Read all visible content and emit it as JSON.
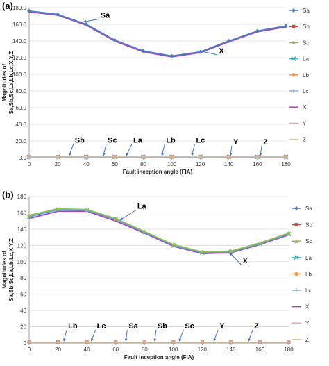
{
  "chart_data": [
    {
      "panel_label": "(a)",
      "type": "line",
      "xlabel": "Fault inception angle (FIA)",
      "ylabel": "Magnitudes of Sa,Sb,Sc,La,Lb,Lc,X,Y,Z",
      "xlim": [
        0,
        180
      ],
      "ylim": [
        0,
        180
      ],
      "xticks": [
        "0",
        "20",
        "40",
        "60",
        "80",
        "100",
        "120",
        "140",
        "160",
        "180"
      ],
      "yticks": [
        "0.0",
        "20.0",
        "40.0",
        "60.0",
        "80.0",
        "100.0",
        "120.0",
        "140.0",
        "160.0",
        "180.0"
      ],
      "grid": "horizontal",
      "legend": "right",
      "x": [
        0,
        20,
        40,
        60,
        80,
        100,
        120,
        140,
        160,
        180
      ],
      "series": [
        {
          "name": "Sa",
          "marker": "diamond",
          "color": "#4a7ebb",
          "values": [
            176,
            172,
            160,
            141,
            128,
            122,
            127,
            140,
            152,
            158
          ]
        },
        {
          "name": "Sb",
          "marker": "square",
          "color": "#be4b48",
          "values": [
            1,
            1,
            1,
            1,
            1,
            1,
            1,
            1,
            1,
            1
          ]
        },
        {
          "name": "Sc",
          "marker": "triangle",
          "color": "#98b954",
          "values": [
            1,
            1,
            1,
            1,
            1,
            1,
            1,
            1,
            1,
            1
          ]
        },
        {
          "name": "La",
          "marker": "x",
          "color": "#46aac5",
          "values": [
            1,
            1,
            1,
            1,
            1,
            1,
            1,
            1,
            1,
            1
          ]
        },
        {
          "name": "Lb",
          "marker": "circle",
          "color": "#f79646",
          "values": [
            1,
            1,
            1,
            1,
            1,
            1,
            1,
            1,
            1,
            1
          ]
        },
        {
          "name": "Lc",
          "marker": "plus",
          "color": "#8eb4e3",
          "values": [
            1,
            1,
            1,
            1,
            1,
            1,
            1,
            1,
            1,
            1
          ]
        },
        {
          "name": "X",
          "marker": "none",
          "color": "#b03cc8",
          "values": [
            175,
            171,
            159,
            140,
            127,
            121,
            126,
            139,
            151,
            157
          ]
        },
        {
          "name": "Y",
          "marker": "none",
          "color": "#f0a0c8",
          "values": [
            1,
            1,
            1,
            1,
            1,
            1,
            1,
            1,
            1,
            1
          ]
        },
        {
          "name": "Z",
          "marker": "none",
          "color": "#d8c89a",
          "values": [
            1,
            1,
            1,
            1,
            1,
            1,
            1,
            1,
            1,
            1
          ]
        }
      ],
      "annotations": [
        {
          "text": "Sa",
          "x": 50,
          "y": 168,
          "to_x": 38,
          "to_y": 163
        },
        {
          "text": "X",
          "x": 133,
          "y": 125,
          "to_x": 120,
          "to_y": 128
        },
        {
          "text": "Sb",
          "x": 32,
          "y": 18,
          "to_x": 28,
          "to_y": 2
        },
        {
          "text": "Sc",
          "x": 55,
          "y": 18,
          "to_x": 52,
          "to_y": 2
        },
        {
          "text": "La",
          "x": 73,
          "y": 18,
          "to_x": 68,
          "to_y": 2
        },
        {
          "text": "Lb",
          "x": 96,
          "y": 18,
          "to_x": 93,
          "to_y": 2
        },
        {
          "text": "Lc",
          "x": 117,
          "y": 18,
          "to_x": 114,
          "to_y": 2
        },
        {
          "text": "Y",
          "x": 143,
          "y": 16,
          "to_x": 141,
          "to_y": 2
        },
        {
          "text": "Z",
          "x": 164,
          "y": 16,
          "to_x": 162,
          "to_y": 2
        }
      ]
    },
    {
      "panel_label": "(b)",
      "type": "line",
      "xlabel": "Fault inception angle (FIA)",
      "ylabel": "Magnitudes of Sa,Sb,Sc,La,Lb,Lc,X,Y,Z",
      "xlim": [
        0,
        180
      ],
      "ylim": [
        0,
        180
      ],
      "xticks": [
        "0",
        "20",
        "40",
        "60",
        "80",
        "100",
        "120",
        "140",
        "160",
        "180"
      ],
      "yticks": [
        "0",
        "20",
        "40",
        "60",
        "80",
        "100",
        "120",
        "140",
        "160",
        "180"
      ],
      "grid": "horizontal",
      "legend": "right",
      "x": [
        0,
        20,
        40,
        60,
        80,
        100,
        120,
        140,
        160,
        180
      ],
      "series": [
        {
          "name": "Sa",
          "marker": "diamond",
          "color": "#4a7ebb",
          "values": [
            1,
            1,
            1,
            1,
            1,
            1,
            1,
            1,
            1,
            1
          ]
        },
        {
          "name": "Sb",
          "marker": "square",
          "color": "#be4b48",
          "values": [
            1,
            1,
            1,
            1,
            1,
            1,
            1,
            1,
            1,
            1
          ]
        },
        {
          "name": "Sc",
          "marker": "triangle",
          "color": "#98b954",
          "values": [
            157,
            165,
            164,
            153,
            137,
            121,
            112,
            113,
            123,
            135
          ]
        },
        {
          "name": "La",
          "marker": "x",
          "color": "#46aac5",
          "values": [
            155,
            164,
            163,
            152,
            136,
            120,
            111,
            112,
            122,
            134
          ]
        },
        {
          "name": "Lb",
          "marker": "circle",
          "color": "#f79646",
          "values": [
            1,
            1,
            1,
            1,
            1,
            1,
            1,
            1,
            1,
            1
          ]
        },
        {
          "name": "Lc",
          "marker": "plus",
          "color": "#8eb4e3",
          "values": [
            1,
            1,
            1,
            1,
            1,
            1,
            1,
            1,
            1,
            1
          ]
        },
        {
          "name": "X",
          "marker": "none",
          "color": "#b03cc8",
          "values": [
            153,
            162,
            162,
            150,
            135,
            119,
            110,
            111,
            121,
            133
          ]
        },
        {
          "name": "Y",
          "marker": "none",
          "color": "#f0a0c8",
          "values": [
            1,
            1,
            1,
            1,
            1,
            1,
            1,
            1,
            1,
            1
          ]
        },
        {
          "name": "Z",
          "marker": "none",
          "color": "#d8c89a",
          "values": [
            1,
            1,
            1,
            1,
            1,
            1,
            1,
            1,
            1,
            1
          ]
        }
      ],
      "annotations": [
        {
          "text": "La",
          "x": 75,
          "y": 165,
          "to_x": 63,
          "to_y": 151
        },
        {
          "text": "X",
          "x": 148,
          "y": 98,
          "to_x": 139,
          "to_y": 111
        },
        {
          "text": "Lb",
          "x": 27,
          "y": 18,
          "to_x": 24,
          "to_y": 2
        },
        {
          "text": "Lc",
          "x": 47,
          "y": 18,
          "to_x": 43,
          "to_y": 2
        },
        {
          "text": "Sa",
          "x": 69,
          "y": 18,
          "to_x": 67,
          "to_y": 2
        },
        {
          "text": "Sb",
          "x": 89,
          "y": 18,
          "to_x": 87,
          "to_y": 2
        },
        {
          "text": "Sc",
          "x": 108,
          "y": 18,
          "to_x": 104,
          "to_y": 2
        },
        {
          "text": "Y",
          "x": 132,
          "y": 18,
          "to_x": 128,
          "to_y": 2
        },
        {
          "text": "Z",
          "x": 156,
          "y": 18,
          "to_x": 152,
          "to_y": 2
        }
      ]
    }
  ]
}
